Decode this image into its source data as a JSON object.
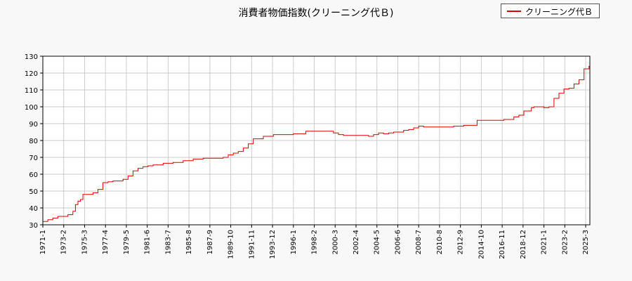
{
  "chart_data": {
    "type": "line",
    "title": "消費者物価指数(クリーニング代Ｂ)",
    "xlabel": "",
    "ylabel": "",
    "ylim": [
      30,
      130
    ],
    "yticks": [
      30,
      40,
      50,
      60,
      70,
      80,
      90,
      100,
      110,
      120,
      130
    ],
    "xlim": [
      "1971-01",
      "2025-08"
    ],
    "xticks": [
      "1971-1",
      "1973-2",
      "1975-3",
      "1977-4",
      "1979-5",
      "1981-6",
      "1983-7",
      "1985-8",
      "1987-9",
      "1989-10",
      "1991-11",
      "1993-12",
      "1996-1",
      "1998-2",
      "2000-3",
      "2002-4",
      "2004-5",
      "2006-6",
      "2008-7",
      "2010-8",
      "2012-9",
      "2014-10",
      "2016-11",
      "2018-12",
      "2021-1",
      "2023-2",
      "2025-3"
    ],
    "grid": true,
    "legend_position": "top-right",
    "series": [
      {
        "name": "クリーニング代Ｂ",
        "color": "#dd0000",
        "x": [
          "1971-01",
          "1971-07",
          "1972-01",
          "1972-07",
          "1973-01",
          "1973-07",
          "1974-01",
          "1974-04",
          "1974-07",
          "1974-10",
          "1975-01",
          "1975-04",
          "1975-07",
          "1976-01",
          "1976-07",
          "1977-01",
          "1977-04",
          "1977-07",
          "1978-01",
          "1978-07",
          "1979-01",
          "1979-07",
          "1980-01",
          "1980-07",
          "1981-01",
          "1981-07",
          "1982-01",
          "1983-01",
          "1984-01",
          "1985-01",
          "1986-01",
          "1987-01",
          "1988-01",
          "1988-07",
          "1989-01",
          "1989-07",
          "1990-01",
          "1990-07",
          "1991-01",
          "1991-07",
          "1992-01",
          "1993-01",
          "1994-01",
          "1995-01",
          "1996-01",
          "1997-01",
          "1997-04",
          "1998-01",
          "1999-01",
          "2000-01",
          "2000-07",
          "2001-01",
          "2002-01",
          "2003-01",
          "2003-07",
          "2004-01",
          "2004-07",
          "2005-01",
          "2005-07",
          "2006-01",
          "2007-01",
          "2007-07",
          "2008-01",
          "2008-07",
          "2009-01",
          "2010-01",
          "2011-01",
          "2012-01",
          "2013-01",
          "2014-01",
          "2014-05",
          "2015-01",
          "2016-01",
          "2017-01",
          "2018-01",
          "2018-07",
          "2019-01",
          "2019-10",
          "2020-01",
          "2021-01",
          "2021-07",
          "2022-01",
          "2022-07",
          "2023-01",
          "2023-07",
          "2024-01",
          "2024-07",
          "2025-01",
          "2025-07"
        ],
        "values": [
          32,
          33,
          34,
          35,
          35,
          36,
          38,
          42,
          44,
          45,
          48,
          48,
          48,
          49,
          51,
          55,
          55,
          55.5,
          56,
          56,
          57,
          59,
          62,
          63.5,
          64.5,
          65,
          65.5,
          66.5,
          67,
          68,
          69,
          69.5,
          69.5,
          69.5,
          70,
          71.5,
          72.5,
          73.5,
          75.5,
          78,
          81,
          82.5,
          83.5,
          83.5,
          84,
          84,
          85.5,
          85.5,
          85.5,
          84.5,
          83.5,
          83,
          83,
          83,
          82.5,
          83.5,
          84.5,
          84,
          84.5,
          85,
          86,
          86.5,
          87.5,
          88.5,
          88,
          88,
          88,
          88.5,
          89,
          89,
          92,
          92,
          92,
          92.5,
          94,
          95,
          97.5,
          99.5,
          100,
          99.5,
          100,
          105,
          108,
          110.5,
          111,
          113.5,
          116,
          122.5,
          124
        ]
      }
    ]
  }
}
